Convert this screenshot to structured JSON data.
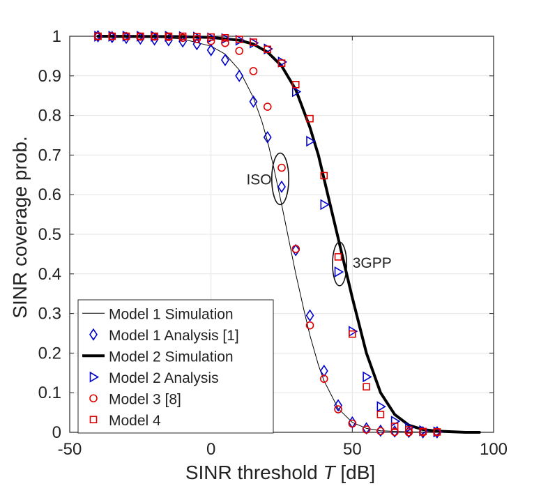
{
  "chart_data": {
    "type": "line",
    "title": "",
    "xlabel_main": "SINR threshold ",
    "xlabel_italic": "T",
    "xlabel_unit": " [dB]",
    "ylabel": "SINR coverage prob.",
    "xlim": [
      -50,
      100
    ],
    "ylim": [
      0,
      1
    ],
    "xticks": [
      -50,
      0,
      50,
      100
    ],
    "yticks": [
      0,
      0.1,
      0.2,
      0.3,
      0.4,
      0.5,
      0.6,
      0.7,
      0.8,
      0.9,
      1
    ],
    "grid": true,
    "legend_position": "bottom-left",
    "annotations": [
      {
        "id": "iso",
        "text": "ISO",
        "x": 17,
        "y": 0.64
      },
      {
        "id": "3gpp",
        "text": "3GPP",
        "x": 57,
        "y": 0.43
      }
    ],
    "ellipses": [
      {
        "id": "iso",
        "cx": 24.5,
        "cy": 0.64,
        "rx": 3,
        "ry": 0.065
      },
      {
        "id": "3gpp",
        "cx": 45.5,
        "cy": 0.425,
        "rx": 2.5,
        "ry": 0.055
      }
    ],
    "series": [
      {
        "name": "Model 1 Simulation",
        "style": "line",
        "color": "#000000",
        "width": 1,
        "x": [
          -40,
          -20,
          -10,
          0,
          5,
          10,
          15,
          18,
          20,
          22,
          25,
          28,
          30,
          33,
          35,
          38,
          40,
          45,
          50,
          55,
          60,
          70,
          80
        ],
        "y": [
          1.0,
          0.998,
          0.993,
          0.975,
          0.955,
          0.915,
          0.845,
          0.785,
          0.735,
          0.675,
          0.575,
          0.47,
          0.4,
          0.305,
          0.245,
          0.17,
          0.13,
          0.06,
          0.025,
          0.01,
          0.004,
          0.001,
          0.0
        ]
      },
      {
        "name": "Model 1 Analysis [1]",
        "style": "marker",
        "marker": "diamond",
        "color": "#0000cc",
        "x": [
          -40,
          -35,
          -30,
          -25,
          -20,
          -15,
          -10,
          -5,
          0,
          5,
          10,
          15,
          20,
          25,
          30,
          35,
          40,
          45,
          50,
          55,
          60,
          65,
          70,
          75,
          80
        ],
        "y": [
          1.0,
          0.998,
          0.996,
          0.994,
          0.992,
          0.99,
          0.987,
          0.98,
          0.965,
          0.94,
          0.9,
          0.835,
          0.745,
          0.62,
          0.46,
          0.295,
          0.155,
          0.068,
          0.025,
          0.01,
          0.004,
          0.002,
          0.001,
          0.0,
          0.0
        ]
      },
      {
        "name": "Model 2 Simulation",
        "style": "line",
        "color": "#000000",
        "width": 4,
        "x": [
          -40,
          -10,
          0,
          10,
          15,
          20,
          25,
          30,
          35,
          38,
          40,
          43,
          45,
          48,
          50,
          55,
          60,
          65,
          70,
          75,
          80,
          90,
          95
        ],
        "y": [
          1.0,
          0.999,
          0.997,
          0.99,
          0.98,
          0.96,
          0.925,
          0.865,
          0.77,
          0.7,
          0.64,
          0.55,
          0.49,
          0.4,
          0.34,
          0.2,
          0.1,
          0.045,
          0.018,
          0.007,
          0.003,
          0.0,
          0.0
        ]
      },
      {
        "name": "Model 2 Analysis",
        "style": "marker",
        "marker": "triangle-right",
        "color": "#0000cc",
        "x": [
          -40,
          -35,
          -30,
          -25,
          -20,
          -15,
          -10,
          -5,
          0,
          5,
          10,
          15,
          20,
          25,
          30,
          35,
          40,
          45,
          50,
          55,
          60,
          65,
          70,
          75,
          80
        ],
        "y": [
          1.0,
          1.0,
          1.0,
          1.0,
          1.0,
          1.0,
          0.999,
          0.998,
          0.996,
          0.994,
          0.99,
          0.983,
          0.968,
          0.935,
          0.86,
          0.735,
          0.575,
          0.405,
          0.255,
          0.14,
          0.065,
          0.028,
          0.012,
          0.004,
          0.001
        ]
      },
      {
        "name": "Model 3 [8]",
        "style": "marker",
        "marker": "circle",
        "color": "#dd0000",
        "x": [
          -40,
          -35,
          -30,
          -25,
          -20,
          -15,
          -10,
          -5,
          0,
          5,
          10,
          15,
          20,
          25,
          30,
          35,
          40,
          45,
          50,
          55,
          60,
          65,
          70,
          75,
          80
        ],
        "y": [
          1.0,
          1.0,
          1.0,
          0.999,
          0.999,
          0.998,
          0.996,
          0.993,
          0.988,
          0.983,
          0.963,
          0.912,
          0.822,
          0.668,
          0.463,
          0.27,
          0.135,
          0.058,
          0.022,
          0.007,
          0.003,
          0.001,
          0.0,
          0.0,
          0.0
        ]
      },
      {
        "name": "Model 4",
        "style": "marker",
        "marker": "square",
        "color": "#dd0000",
        "x": [
          -40,
          -35,
          -30,
          -25,
          -20,
          -15,
          -10,
          -5,
          0,
          5,
          10,
          15,
          20,
          25,
          30,
          35,
          40,
          45,
          50,
          55,
          60,
          65,
          70,
          75,
          80
        ],
        "y": [
          1.0,
          1.0,
          1.0,
          1.0,
          1.0,
          1.0,
          1.0,
          0.999,
          0.998,
          0.996,
          0.992,
          0.985,
          0.967,
          0.932,
          0.878,
          0.792,
          0.648,
          0.443,
          0.248,
          0.115,
          0.045,
          0.015,
          0.006,
          0.002,
          0.001
        ]
      }
    ]
  }
}
